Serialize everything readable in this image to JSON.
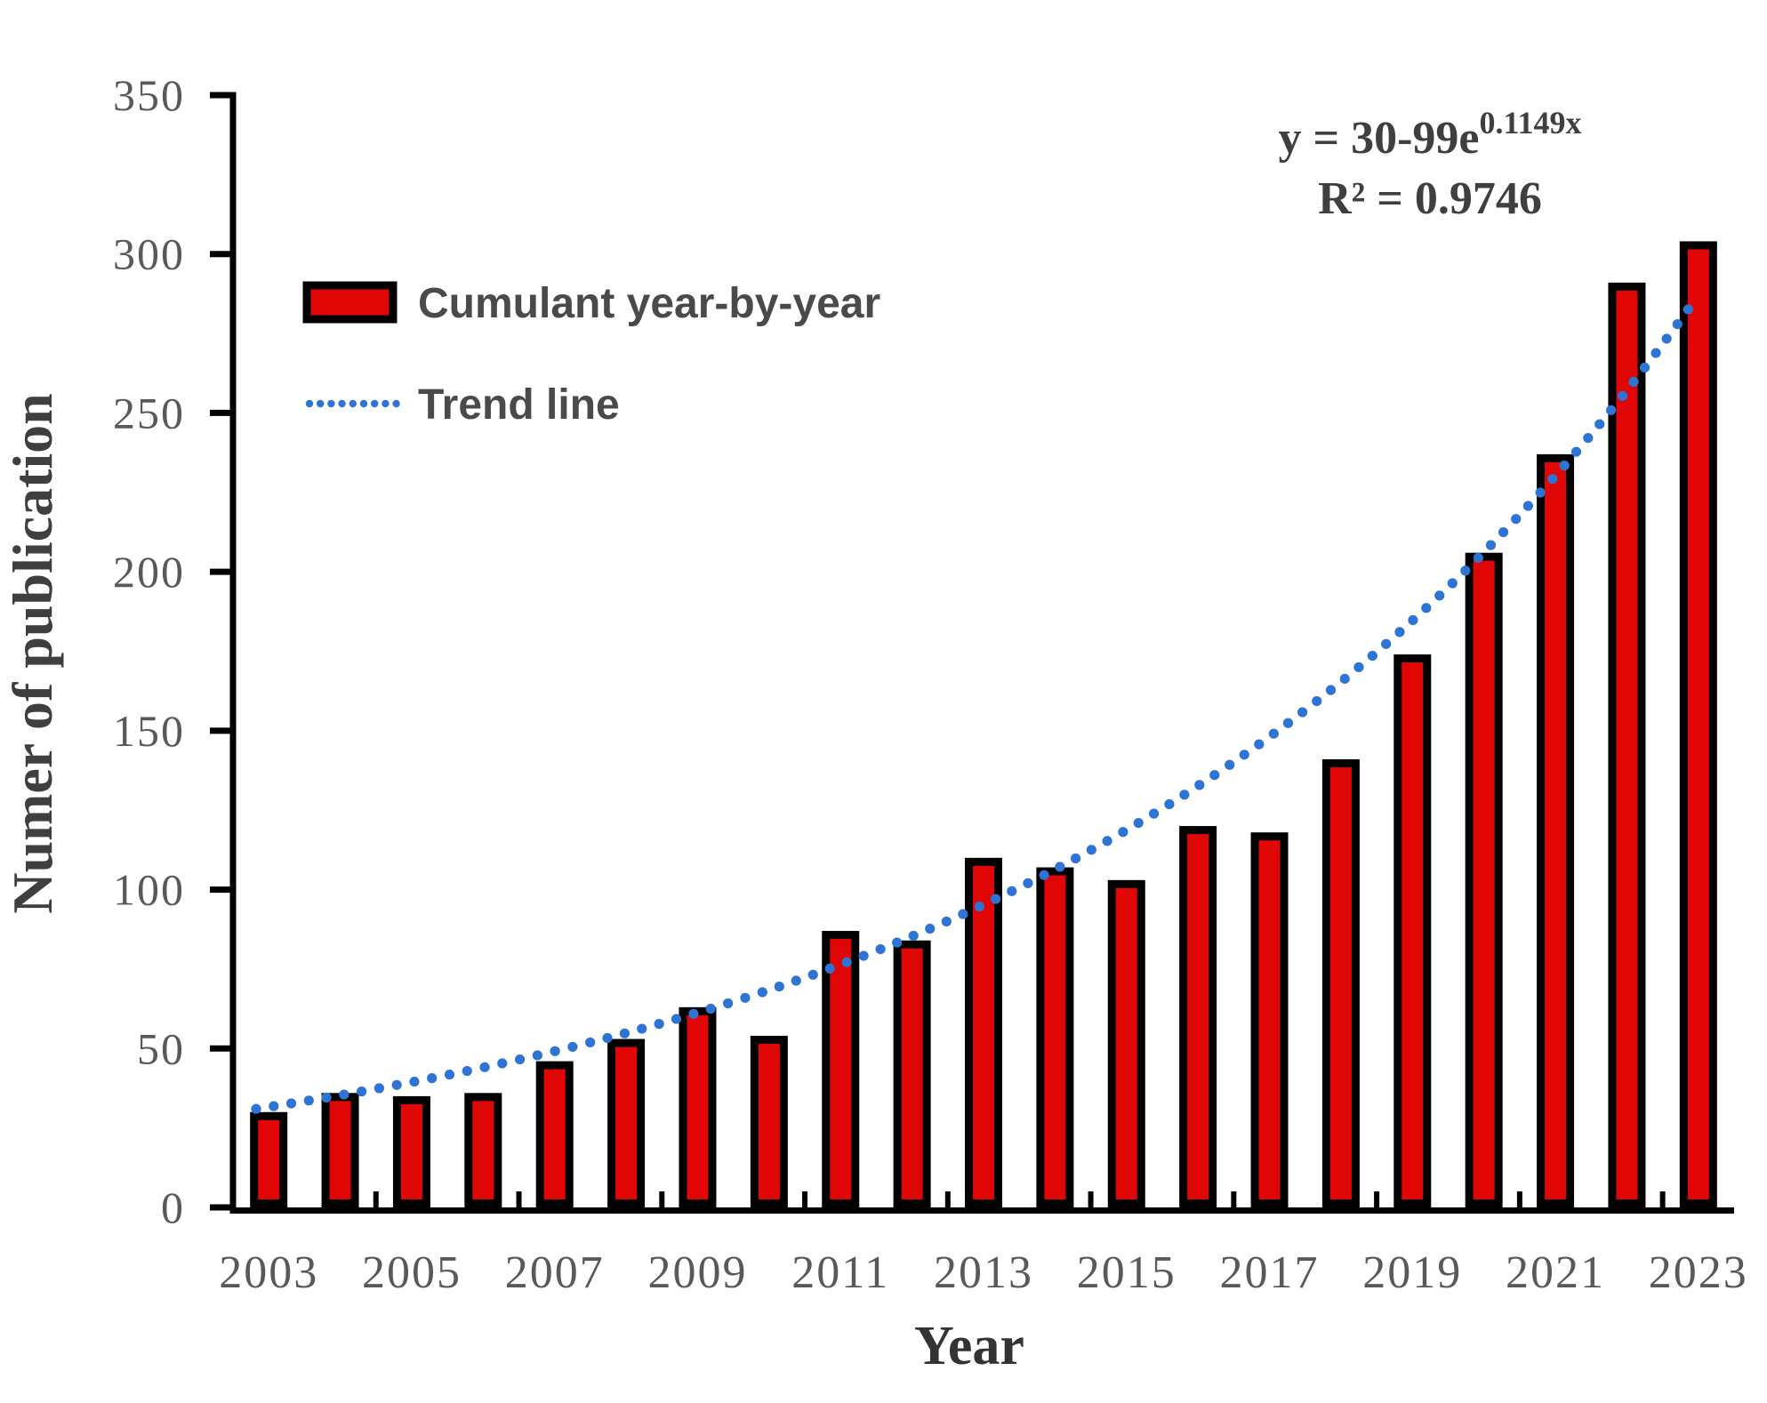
{
  "figure": {
    "background": "#ffffff"
  },
  "colors": {
    "bar_fill": "#e00606",
    "bar_stroke": "#000000",
    "trend_blue": "#2e74d4",
    "axis_black": "#000000",
    "tick_text": "#595959",
    "title_text": "#3f3f3f",
    "legend_text": "#4a4a4a"
  },
  "legend": {
    "items": [
      {
        "label": "Cumulant year-by-year",
        "swatch": "red-bar-swatch"
      },
      {
        "label": "Trend line",
        "swatch": "blue-dotted-swatch"
      }
    ]
  },
  "chart_data": {
    "type": "bar",
    "title": "",
    "xlabel": "Year",
    "ylabel": "Numer of publication",
    "ylim": [
      0,
      350
    ],
    "y_ticks": [
      0,
      50,
      100,
      150,
      200,
      250,
      300,
      350
    ],
    "grid": false,
    "legend_position": "upper-left",
    "categories": [
      2003,
      2004,
      2005,
      2006,
      2007,
      2008,
      2009,
      2010,
      2011,
      2012,
      2013,
      2014,
      2015,
      2016,
      2017,
      2018,
      2019,
      2020,
      2021,
      2022,
      2023
    ],
    "x_tick_labels": [
      "2003",
      "2005",
      "2007",
      "2009",
      "2011",
      "2013",
      "2015",
      "2017",
      "2019",
      "2021",
      "2023"
    ],
    "series": [
      {
        "name": "Cumulant year-by-year",
        "type": "bar",
        "values": [
          30,
          36,
          35,
          36,
          46,
          53,
          63,
          54,
          87,
          84,
          110,
          107,
          103,
          120,
          118,
          141,
          174,
          206,
          237,
          291,
          304
        ]
      },
      {
        "name": "Trend line",
        "type": "dotted-exponential-trend",
        "start_value": 31,
        "end_value": 284
      }
    ],
    "annotation": {
      "equation_base": "y = 30-99e",
      "equation_exponent": "0.1149x",
      "r_squared": "R² = 0.9746"
    }
  }
}
